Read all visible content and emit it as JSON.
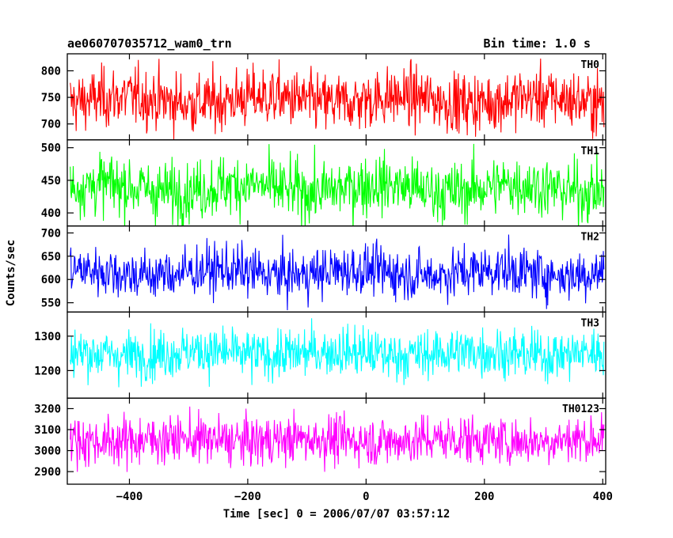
{
  "chart_data": {
    "type": "line",
    "title": "ae060707035712_wam0_trn",
    "subtitle": "Bin time: 1.0 s",
    "xlabel": "Time [sec] 0 = 2006/07/07 03:57:12",
    "ylabel": "Counts/sec",
    "xlim": [
      -505,
      405
    ],
    "x_step": 1.0,
    "x_data_range": [
      -500,
      402
    ],
    "x_ticks": [
      -400,
      -200,
      0,
      200,
      400
    ],
    "x_tick_labels": [
      "−400",
      "−200",
      "0",
      "200",
      "400"
    ],
    "panels": [
      {
        "name": "TH0",
        "color": "#ff0000",
        "ylim": [
          670,
          832
        ],
        "y_ticks": [
          700,
          750,
          800
        ],
        "mean": 745,
        "noise": 28
      },
      {
        "name": "TH1",
        "color": "#00ff00",
        "ylim": [
          380,
          512
        ],
        "y_ticks": [
          400,
          450,
          500
        ],
        "mean": 438,
        "noise": 23
      },
      {
        "name": "TH2",
        "color": "#0000ff",
        "ylim": [
          530,
          715
        ],
        "y_ticks": [
          550,
          600,
          650,
          700
        ],
        "mean": 615,
        "noise": 27
      },
      {
        "name": "TH3",
        "color": "#00ffff",
        "ylim": [
          1120,
          1370
        ],
        "y_ticks": [
          1200,
          1300
        ],
        "mean": 1250,
        "noise": 36
      },
      {
        "name": "TH0123",
        "color": "#ff00ff",
        "ylim": [
          2840,
          3250
        ],
        "y_ticks": [
          2900,
          3000,
          3100,
          3200
        ],
        "mean": 3050,
        "noise": 58
      }
    ]
  }
}
